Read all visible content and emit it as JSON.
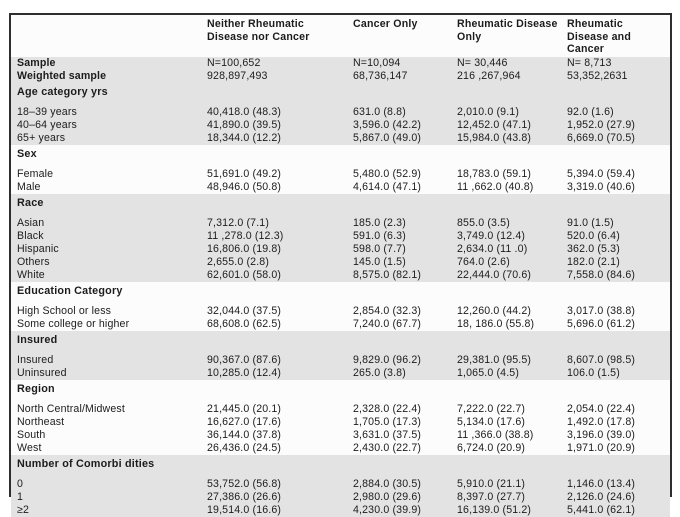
{
  "table": {
    "columns": [
      "",
      "Neither Rheumatic Disease nor Cancer",
      "Cancer Only",
      "Rheumatic Disease Only",
      "Rheumatic Disease and Cancer"
    ],
    "sections": [
      {
        "header": "",
        "shaded": true,
        "rows": [
          {
            "label": "Sample",
            "bold": true,
            "values": [
              "N=100,652",
              "N=10,094",
              "N= 30,446",
              "N= 8,713"
            ]
          },
          {
            "label": "Weighted sample",
            "bold": true,
            "values": [
              "928,897,493",
              "68,736,147",
              "216 ,267,964",
              "53,352,2631"
            ]
          }
        ]
      },
      {
        "header": "Age category yrs",
        "shaded": true,
        "rows": [
          {
            "label": "18–39 years",
            "bold": false,
            "values": [
              "40,418.0 (48.3)",
              "631.0 (8.8)",
              "2,010.0 (9.1)",
              "92.0 (1.6)"
            ]
          },
          {
            "label": "40–64 years",
            "bold": false,
            "values": [
              "41,890.0 (39.5)",
              "3,596.0 (42.2)",
              "12,452.0 (47.1)",
              "1,952.0 (27.9)"
            ]
          },
          {
            "label": "65+ years",
            "bold": false,
            "values": [
              "18,344.0 (12.2)",
              "5,867.0 (49.0)",
              "15,984.0 (43.8)",
              "6,669.0 (70.5)"
            ]
          }
        ]
      },
      {
        "header": "Sex",
        "shaded": false,
        "rows": [
          {
            "label": "Female",
            "bold": false,
            "values": [
              "51,691.0 (49.2)",
              "5,480.0 (52.9)",
              "18,783.0 (59.1)",
              "5,394.0 (59.4)"
            ]
          },
          {
            "label": "Male",
            "bold": false,
            "values": [
              "48,946.0 (50.8)",
              "4,614.0 (47.1)",
              "11 ,662.0 (40.8)",
              "3,319.0 (40.6)"
            ]
          }
        ]
      },
      {
        "header": "Race",
        "shaded": true,
        "rows": [
          {
            "label": "Asian",
            "bold": false,
            "values": [
              "7,312.0 (7.1)",
              "185.0 (2.3)",
              "855.0 (3.5)",
              "91.0 (1.5)"
            ]
          },
          {
            "label": "Black",
            "bold": false,
            "values": [
              "11 ,278.0 (12.3)",
              "591.0 (6.3)",
              "3,749.0 (12.4)",
              "520.0 (6.4)"
            ]
          },
          {
            "label": "Hispanic",
            "bold": false,
            "values": [
              "16,806.0 (19.8)",
              "598.0 (7.7)",
              "2,634.0 (11 .0)",
              "362.0 (5.3)"
            ]
          },
          {
            "label": "Others",
            "bold": false,
            "values": [
              "2,655.0 (2.8)",
              "145.0 (1.5)",
              "764.0 (2.6)",
              "182.0 (2.1)"
            ]
          },
          {
            "label": "White",
            "bold": false,
            "values": [
              "62,601.0 (58.0)",
              "8,575.0 (82.1)",
              "22,444.0 (70.6)",
              "7,558.0 (84.6)"
            ]
          }
        ]
      },
      {
        "header": "Education Category",
        "shaded": false,
        "rows": [
          {
            "label": "High School or less",
            "bold": false,
            "values": [
              "32,044.0 (37.5)",
              "2,854.0 (32.3)",
              "12,260.0 (44.2)",
              "3,017.0 (38.8)"
            ]
          },
          {
            "label": "Some college or higher",
            "bold": false,
            "values": [
              "68,608.0 (62.5)",
              "7,240.0 (67.7)",
              "18, 186.0 (55.8)",
              "5,696.0 (61.2)"
            ]
          }
        ]
      },
      {
        "header": "Insured",
        "shaded": true,
        "rows": [
          {
            "label": "Insured",
            "bold": false,
            "values": [
              "90,367.0 (87.6)",
              "9,829.0 (96.2)",
              "29,381.0 (95.5)",
              "8,607.0 (98.5)"
            ]
          },
          {
            "label": "Uninsured",
            "bold": false,
            "values": [
              "10,285.0 (12.4)",
              "265.0 (3.8)",
              "1,065.0 (4.5)",
              "106.0 (1.5)"
            ]
          }
        ]
      },
      {
        "header": "Region",
        "shaded": false,
        "rows": [
          {
            "label": "North Central/Midwest",
            "bold": false,
            "values": [
              "21,445.0 (20.1)",
              "2,328.0 (22.4)",
              "7,222.0 (22.7)",
              "2,054.0 (22.4)"
            ]
          },
          {
            "label": "Northeast",
            "bold": false,
            "values": [
              "16,627.0 (17.6)",
              "1,705.0 (17.3)",
              "5,134.0 (17.6)",
              "1,492.0 (17.8)"
            ]
          },
          {
            "label": "South",
            "bold": false,
            "values": [
              "36,144.0 (37.8)",
              "3,631.0 (37.5)",
              "11 ,366.0 (38.8)",
              "3,196.0 (39.0)"
            ]
          },
          {
            "label": "West",
            "bold": false,
            "values": [
              "26,436.0 (24.5)",
              "2,430.0 (22.7)",
              "6,724.0 (20.9)",
              "1,971.0 (20.9)"
            ]
          }
        ]
      },
      {
        "header": "Number of Comorbi dities",
        "shaded": true,
        "rows": [
          {
            "label": "0",
            "bold": false,
            "values": [
              "53,752.0 (56.8)",
              "2,884.0 (30.5)",
              "5,910.0 (21.1)",
              "1,146.0 (13.4)"
            ]
          },
          {
            "label": "1",
            "bold": false,
            "values": [
              "27,386.0 (26.6)",
              "2,980.0 (29.6)",
              "8,397.0 (27.7)",
              "2,126.0 (24.6)"
            ]
          },
          {
            "label": "≥2",
            "bold": false,
            "values": [
              "19,514.0 (16.6)",
              "4,230.0 (39.9)",
              "16,139.0 (51.2)",
              "5,441.0 (62.1)"
            ]
          }
        ]
      }
    ]
  },
  "colors": {
    "band_gray": "#e3e3e3",
    "border": "#2e2e2e",
    "text": "#1c1c1c"
  }
}
